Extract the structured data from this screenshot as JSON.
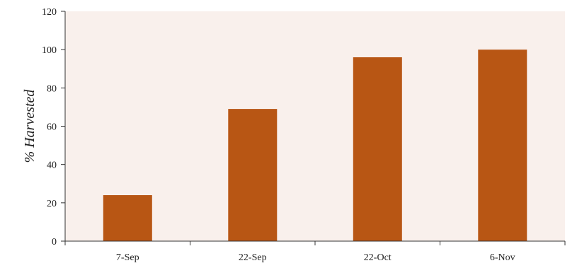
{
  "chart_data": {
    "type": "bar",
    "title": "",
    "xlabel": "",
    "ylabel": "% Harvested",
    "categories": [
      "7-Sep",
      "22-Sep",
      "22-Oct",
      "6-Nov"
    ],
    "values": [
      24,
      69,
      96,
      100
    ],
    "ylim": [
      0,
      120
    ],
    "yticks": [
      0,
      20,
      40,
      60,
      80,
      100,
      120
    ],
    "grid": false,
    "legend": "none",
    "colors": {
      "bar": "#B85614",
      "plot_background": "#F9F0EC",
      "axis": "#333333"
    }
  }
}
